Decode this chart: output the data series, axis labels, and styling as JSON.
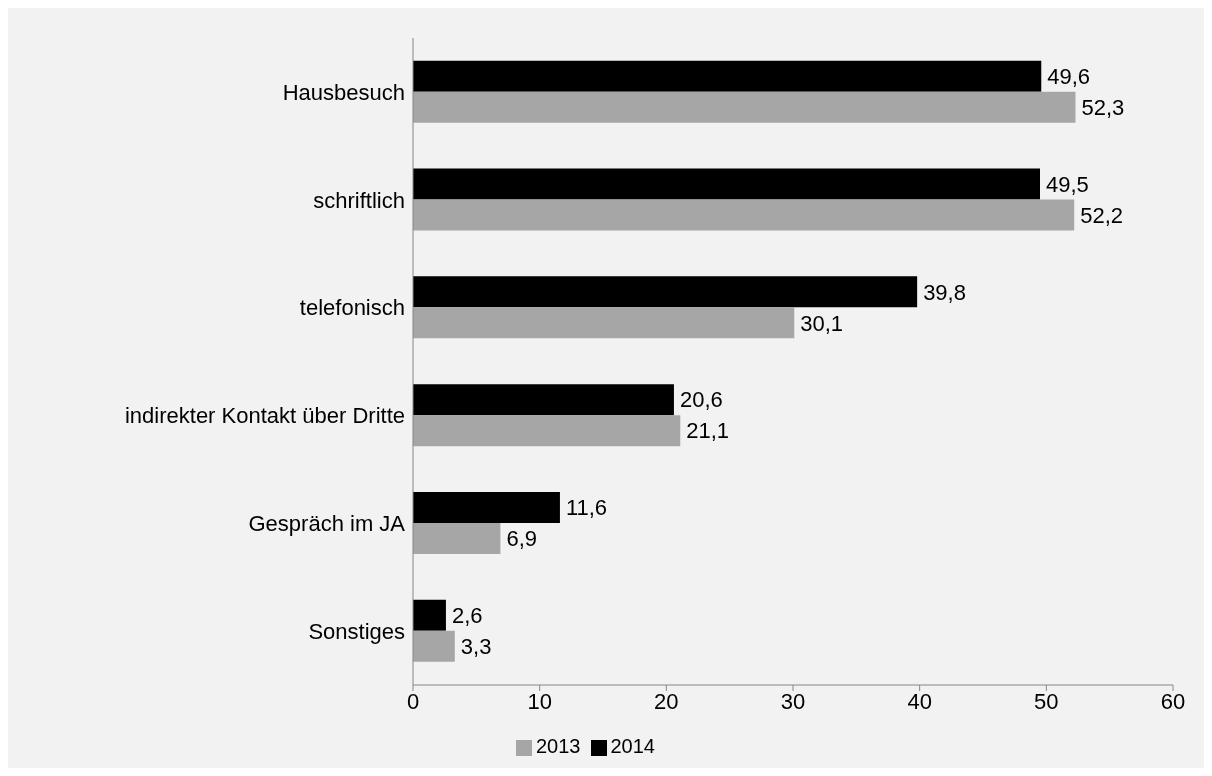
{
  "chart_data": {
    "type": "bar",
    "orientation": "horizontal",
    "categories": [
      "Hausbesuch",
      "schriftlich",
      "telefonisch",
      "indirekter Kontakt über Dritte",
      "Gespräch im JA",
      "Sonstiges"
    ],
    "series": [
      {
        "name": "2014",
        "color": "#000000",
        "values": [
          49.6,
          49.5,
          39.8,
          20.6,
          11.6,
          2.6
        ],
        "value_labels": [
          "49,6",
          "49,5",
          "39,8",
          "20,6",
          "11,6",
          "2,6"
        ]
      },
      {
        "name": "2013",
        "color": "#a6a6a6",
        "values": [
          52.3,
          52.2,
          30.1,
          21.1,
          6.9,
          3.3
        ],
        "value_labels": [
          "52,3",
          "52,2",
          "30,1",
          "21,1",
          "6,9",
          "3,3"
        ]
      }
    ],
    "xlim": [
      0,
      60
    ],
    "xticks": [
      0,
      10,
      20,
      30,
      40,
      50,
      60
    ],
    "grid": false,
    "legend": "bottom"
  }
}
